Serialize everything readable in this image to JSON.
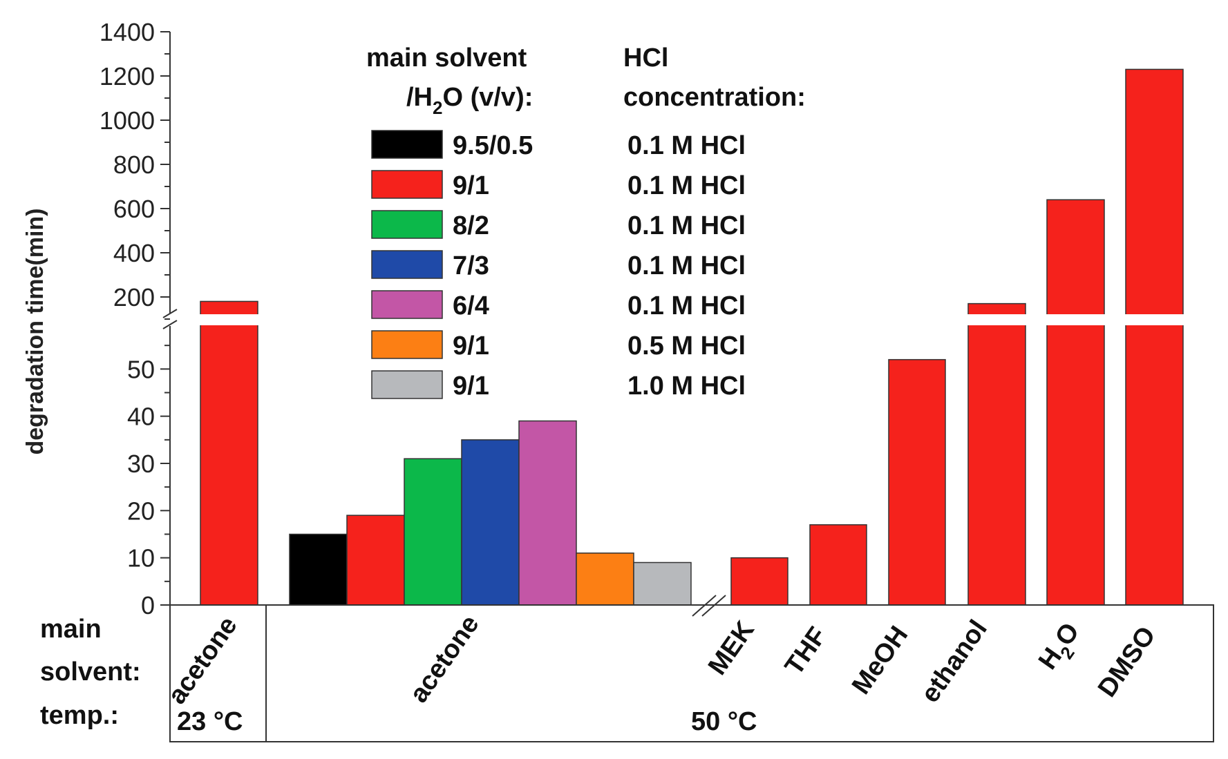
{
  "chart_data": {
    "type": "bar",
    "ylabel": "degradation time(min)",
    "y_axis": {
      "lower_ticks": [
        "0",
        "10",
        "20",
        "30",
        "40",
        "50"
      ],
      "lower_range": [
        0,
        60
      ],
      "upper_ticks": [
        "200",
        "400",
        "600",
        "800",
        "1000",
        "1200",
        "1400"
      ],
      "upper_range": [
        100,
        1400
      ]
    },
    "legend": {
      "header_ratio_line1": "main solvent",
      "header_ratio_line2a": "/H",
      "header_ratio_sub": "2",
      "header_ratio_line2b": "O (v/v):",
      "header_hcl_line1": "HCl",
      "header_hcl_line2": "concentration:",
      "entries": [
        {
          "ratio": "9.5/0.5",
          "hcl": "0.1 M HCl",
          "color": "#000000"
        },
        {
          "ratio": "9/1",
          "hcl": "0.1 M HCl",
          "color": "#f5221c"
        },
        {
          "ratio": "8/2",
          "hcl": "0.1 M HCl",
          "color": "#0cb84a"
        },
        {
          "ratio": "7/3",
          "hcl": "0.1 M HCl",
          "color": "#1f4aa8"
        },
        {
          "ratio": "6/4",
          "hcl": "0.1 M HCl",
          "color": "#c356a6"
        },
        {
          "ratio": "9/1",
          "hcl": "0.5 M HCl",
          "color": "#fc7f14"
        },
        {
          "ratio": "9/1",
          "hcl": "1.0 M HCl",
          "color": "#b7b9bc"
        }
      ]
    },
    "bars": [
      {
        "group": "acetone 23 °C",
        "value": 180,
        "color": "#f5221c"
      },
      {
        "group": "acetone 50 °C",
        "value": 15,
        "color": "#000000"
      },
      {
        "group": "acetone 50 °C",
        "value": 19,
        "color": "#f5221c"
      },
      {
        "group": "acetone 50 °C",
        "value": 31,
        "color": "#0cb84a"
      },
      {
        "group": "acetone 50 °C",
        "value": 35,
        "color": "#1f4aa8"
      },
      {
        "group": "acetone 50 °C",
        "value": 39,
        "color": "#c356a6"
      },
      {
        "group": "acetone 50 °C",
        "value": 11,
        "color": "#fc7f14"
      },
      {
        "group": "acetone 50 °C",
        "value": 9,
        "color": "#b7b9bc"
      },
      {
        "group": "MEK",
        "value": 10,
        "color": "#f5221c"
      },
      {
        "group": "THF",
        "value": 17,
        "color": "#f5221c"
      },
      {
        "group": "MeOH",
        "value": 52,
        "color": "#f5221c"
      },
      {
        "group": "ethanol",
        "value": 170,
        "color": "#f5221c"
      },
      {
        "group": "H2O",
        "value": 640,
        "color": "#f5221c"
      },
      {
        "group": "DMSO",
        "value": 1230,
        "color": "#f5221c"
      }
    ],
    "category_labels": {
      "acetone_23": "acetone",
      "acetone_50": "acetone",
      "mek": "MEK",
      "thf": "THF",
      "meoh": "MeOH",
      "ethanol": "ethanol",
      "h2o_a": "H",
      "h2o_sub": "2",
      "h2o_b": "O",
      "dmso": "DMSO"
    },
    "row_labels": {
      "main1": "main",
      "main2": "solvent:",
      "temp": "temp.:"
    },
    "temps": {
      "t23": "23 °C",
      "t50": "50 °C"
    }
  }
}
